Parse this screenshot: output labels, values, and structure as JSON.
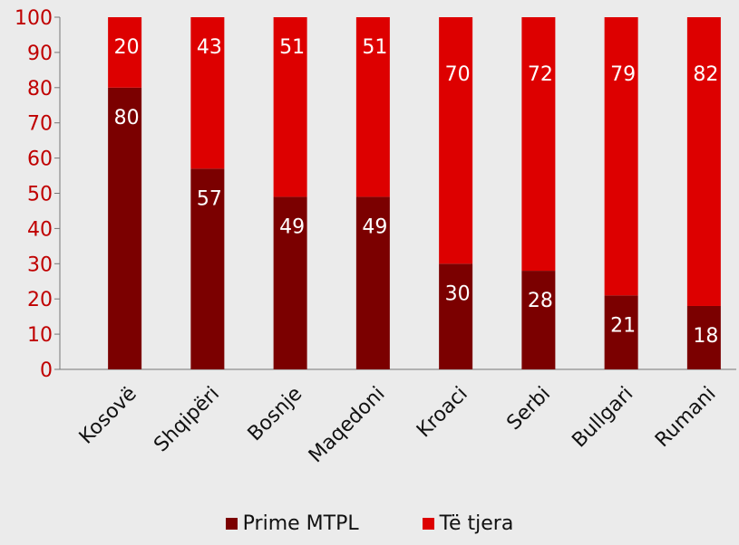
{
  "chart_data": {
    "type": "bar",
    "stacked": true,
    "categories": [
      "Kosovë",
      "Shqipëri",
      "Bosnje",
      "Maqedoni",
      "Kroaci",
      "Serbi",
      "Bullgari",
      "Rumani"
    ],
    "series": [
      {
        "name": "Prime MTPL",
        "values": [
          80,
          57,
          49,
          49,
          30,
          28,
          21,
          18
        ],
        "color": "#7b0000"
      },
      {
        "name": "Të tjera",
        "values": [
          20,
          43,
          51,
          51,
          70,
          72,
          79,
          82
        ],
        "color": "#dd0000"
      }
    ],
    "ylim": [
      0,
      100
    ],
    "yticks": [
      0,
      10,
      20,
      30,
      40,
      50,
      60,
      70,
      80,
      90,
      100
    ],
    "tick_color": "#c00000",
    "grid": false,
    "legend_position": "bottom",
    "data_label_color": "#ffffff"
  }
}
